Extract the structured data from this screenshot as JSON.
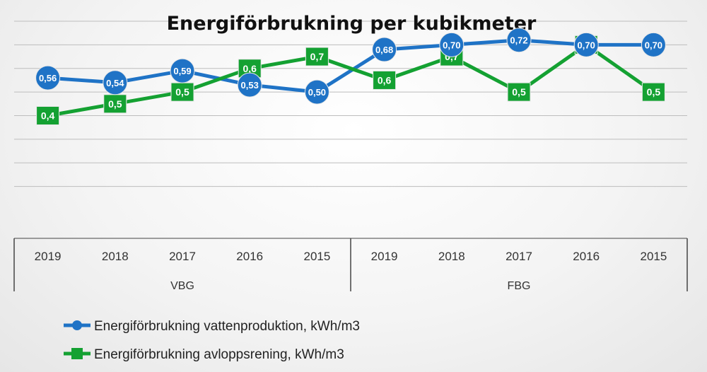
{
  "chart_data": {
    "type": "line",
    "title": "Energiförbrukning per kubikmeter",
    "groups": [
      {
        "name": "VBG",
        "categories": [
          "2019",
          "2018",
          "2017",
          "2016",
          "2015"
        ]
      },
      {
        "name": "FBG",
        "categories": [
          "2019",
          "2018",
          "2017",
          "2016",
          "2015"
        ]
      }
    ],
    "series": [
      {
        "name": "Energiförbrukning vattenproduktion, kWh/m3",
        "color": "#1f73c6",
        "marker": "circle",
        "values": [
          0.56,
          0.54,
          0.59,
          0.53,
          0.5,
          0.68,
          0.7,
          0.72,
          0.7,
          0.7
        ],
        "labels": [
          "0,56",
          "0,54",
          "0,59",
          "0,53",
          "0,50",
          "0,68",
          "0,70",
          "0,72",
          "0,70",
          "0,70"
        ]
      },
      {
        "name": "Energiförbrukning avloppsrening, kWh/m3",
        "color": "#14a132",
        "marker": "square",
        "values": [
          0.4,
          0.45,
          0.5,
          0.6,
          0.65,
          0.55,
          0.65,
          0.5,
          0.7,
          0.5
        ],
        "labels": [
          "0,4",
          "0,5",
          "0,5",
          "0,6",
          "0,7",
          "0,6",
          "0,7",
          "0,5",
          "0,7",
          "0,5"
        ]
      }
    ],
    "ylim": [
      0,
      0.8
    ],
    "grid": true,
    "legend": "bottom-left",
    "xlabel": "",
    "ylabel": ""
  }
}
